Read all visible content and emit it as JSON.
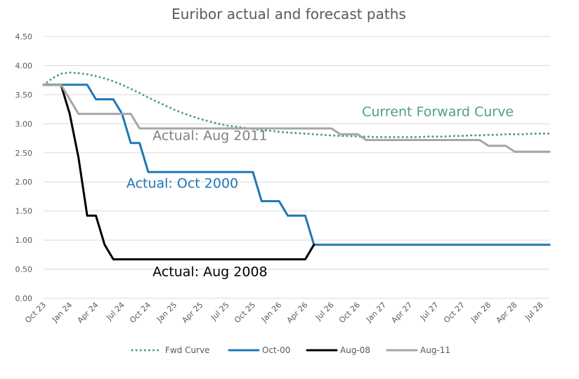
{
  "chart_data": {
    "type": "line",
    "title": "Euribor actual and forecast paths",
    "xlabel": "",
    "ylabel": "",
    "ylim": [
      0,
      4.5
    ],
    "yticks": [
      "0.00",
      "0.50",
      "1.00",
      "1.50",
      "2.00",
      "2.50",
      "3.00",
      "3.50",
      "4.00",
      "4.50"
    ],
    "x_ticks": [
      "Oct 23",
      "Jan 24",
      "Apr 24",
      "Jul 24",
      "Oct 24",
      "Jan 25",
      "Apr 25",
      "Jul 25",
      "Oct 25",
      "Jan 26",
      "Apr 26",
      "Jul 26",
      "Oct 26",
      "Jan 27",
      "Apr 27",
      "Jul 27",
      "Oct 27",
      "Jan 28",
      "Apr 28",
      "Jul 28"
    ],
    "grid": true,
    "legend_position": "bottom",
    "series": [
      {
        "name": "Fwd Curve",
        "color": "#4f9f82",
        "style": "dotted",
        "points": [
          [
            0,
            3.67
          ],
          [
            1,
            3.78
          ],
          [
            2,
            3.86
          ],
          [
            3,
            3.88
          ],
          [
            4,
            3.87
          ],
          [
            5,
            3.85
          ],
          [
            6,
            3.82
          ],
          [
            7,
            3.78
          ],
          [
            8,
            3.73
          ],
          [
            9,
            3.67
          ],
          [
            10,
            3.6
          ],
          [
            11,
            3.53
          ],
          [
            12,
            3.45
          ],
          [
            13,
            3.38
          ],
          [
            14,
            3.31
          ],
          [
            15,
            3.24
          ],
          [
            16,
            3.18
          ],
          [
            17,
            3.13
          ],
          [
            18,
            3.08
          ],
          [
            19,
            3.04
          ],
          [
            20,
            3.0
          ],
          [
            21,
            2.97
          ],
          [
            22,
            2.95
          ],
          [
            23,
            2.93
          ],
          [
            24,
            2.91
          ],
          [
            25,
            2.89
          ],
          [
            26,
            2.88
          ],
          [
            27,
            2.86
          ],
          [
            28,
            2.85
          ],
          [
            29,
            2.84
          ],
          [
            30,
            2.83
          ],
          [
            31,
            2.82
          ],
          [
            32,
            2.81
          ],
          [
            33,
            2.8
          ],
          [
            34,
            2.79
          ],
          [
            35,
            2.79
          ],
          [
            36,
            2.78
          ],
          [
            37,
            2.78
          ],
          [
            38,
            2.77
          ],
          [
            39,
            2.77
          ],
          [
            40,
            2.77
          ],
          [
            41,
            2.77
          ],
          [
            42,
            2.77
          ],
          [
            43,
            2.77
          ],
          [
            44,
            2.78
          ],
          [
            45,
            2.78
          ],
          [
            46,
            2.78
          ],
          [
            47,
            2.79
          ],
          [
            48,
            2.79
          ],
          [
            49,
            2.8
          ],
          [
            50,
            2.8
          ],
          [
            51,
            2.81
          ],
          [
            52,
            2.81
          ],
          [
            53,
            2.82
          ],
          [
            54,
            2.82
          ],
          [
            55,
            2.82
          ],
          [
            56,
            2.83
          ],
          [
            57,
            2.83
          ],
          [
            58,
            2.83
          ]
        ]
      },
      {
        "name": "Oct-00",
        "color": "#1f78b4",
        "style": "solid",
        "points": [
          [
            0,
            3.67
          ],
          [
            5,
            3.67
          ],
          [
            6,
            3.42
          ],
          [
            8,
            3.42
          ],
          [
            9,
            3.17
          ],
          [
            10,
            2.67
          ],
          [
            11,
            2.67
          ],
          [
            12,
            2.17
          ],
          [
            24,
            2.17
          ],
          [
            25,
            1.67
          ],
          [
            27,
            1.67
          ],
          [
            28,
            1.42
          ],
          [
            30,
            1.42
          ],
          [
            31,
            0.92
          ],
          [
            58,
            0.92
          ]
        ]
      },
      {
        "name": "Aug-08",
        "color": "#000000",
        "style": "solid",
        "points": [
          [
            0,
            3.67
          ],
          [
            2,
            3.67
          ],
          [
            3,
            3.17
          ],
          [
            4,
            2.42
          ],
          [
            5,
            1.42
          ],
          [
            6,
            1.42
          ],
          [
            7,
            0.92
          ],
          [
            8,
            0.67
          ],
          [
            30,
            0.67
          ],
          [
            31,
            0.92
          ]
        ]
      },
      {
        "name": "Aug-11",
        "color": "#a6a6a6",
        "style": "solid",
        "points": [
          [
            0,
            3.67
          ],
          [
            2,
            3.67
          ],
          [
            4,
            3.17
          ],
          [
            10,
            3.17
          ],
          [
            11,
            2.92
          ],
          [
            33,
            2.92
          ],
          [
            34,
            2.82
          ],
          [
            36,
            2.82
          ],
          [
            37,
            2.72
          ],
          [
            50,
            2.72
          ],
          [
            51,
            2.62
          ],
          [
            53,
            2.62
          ],
          [
            54,
            2.52
          ],
          [
            58,
            2.52
          ]
        ]
      }
    ],
    "annotations": [
      {
        "text": "Current Forward Curve",
        "x": 36.5,
        "y": 3.13,
        "color": "#4f9f82"
      },
      {
        "text": "Actual: Aug 2011",
        "x": 12.5,
        "y": 2.72,
        "color": "#808080"
      },
      {
        "text": "Actual: Oct 2000",
        "x": 9.5,
        "y": 1.9,
        "color": "#1f78b4"
      },
      {
        "text": "Actual: Aug 2008",
        "x": 12.5,
        "y": 0.38,
        "color": "#000000"
      }
    ]
  }
}
